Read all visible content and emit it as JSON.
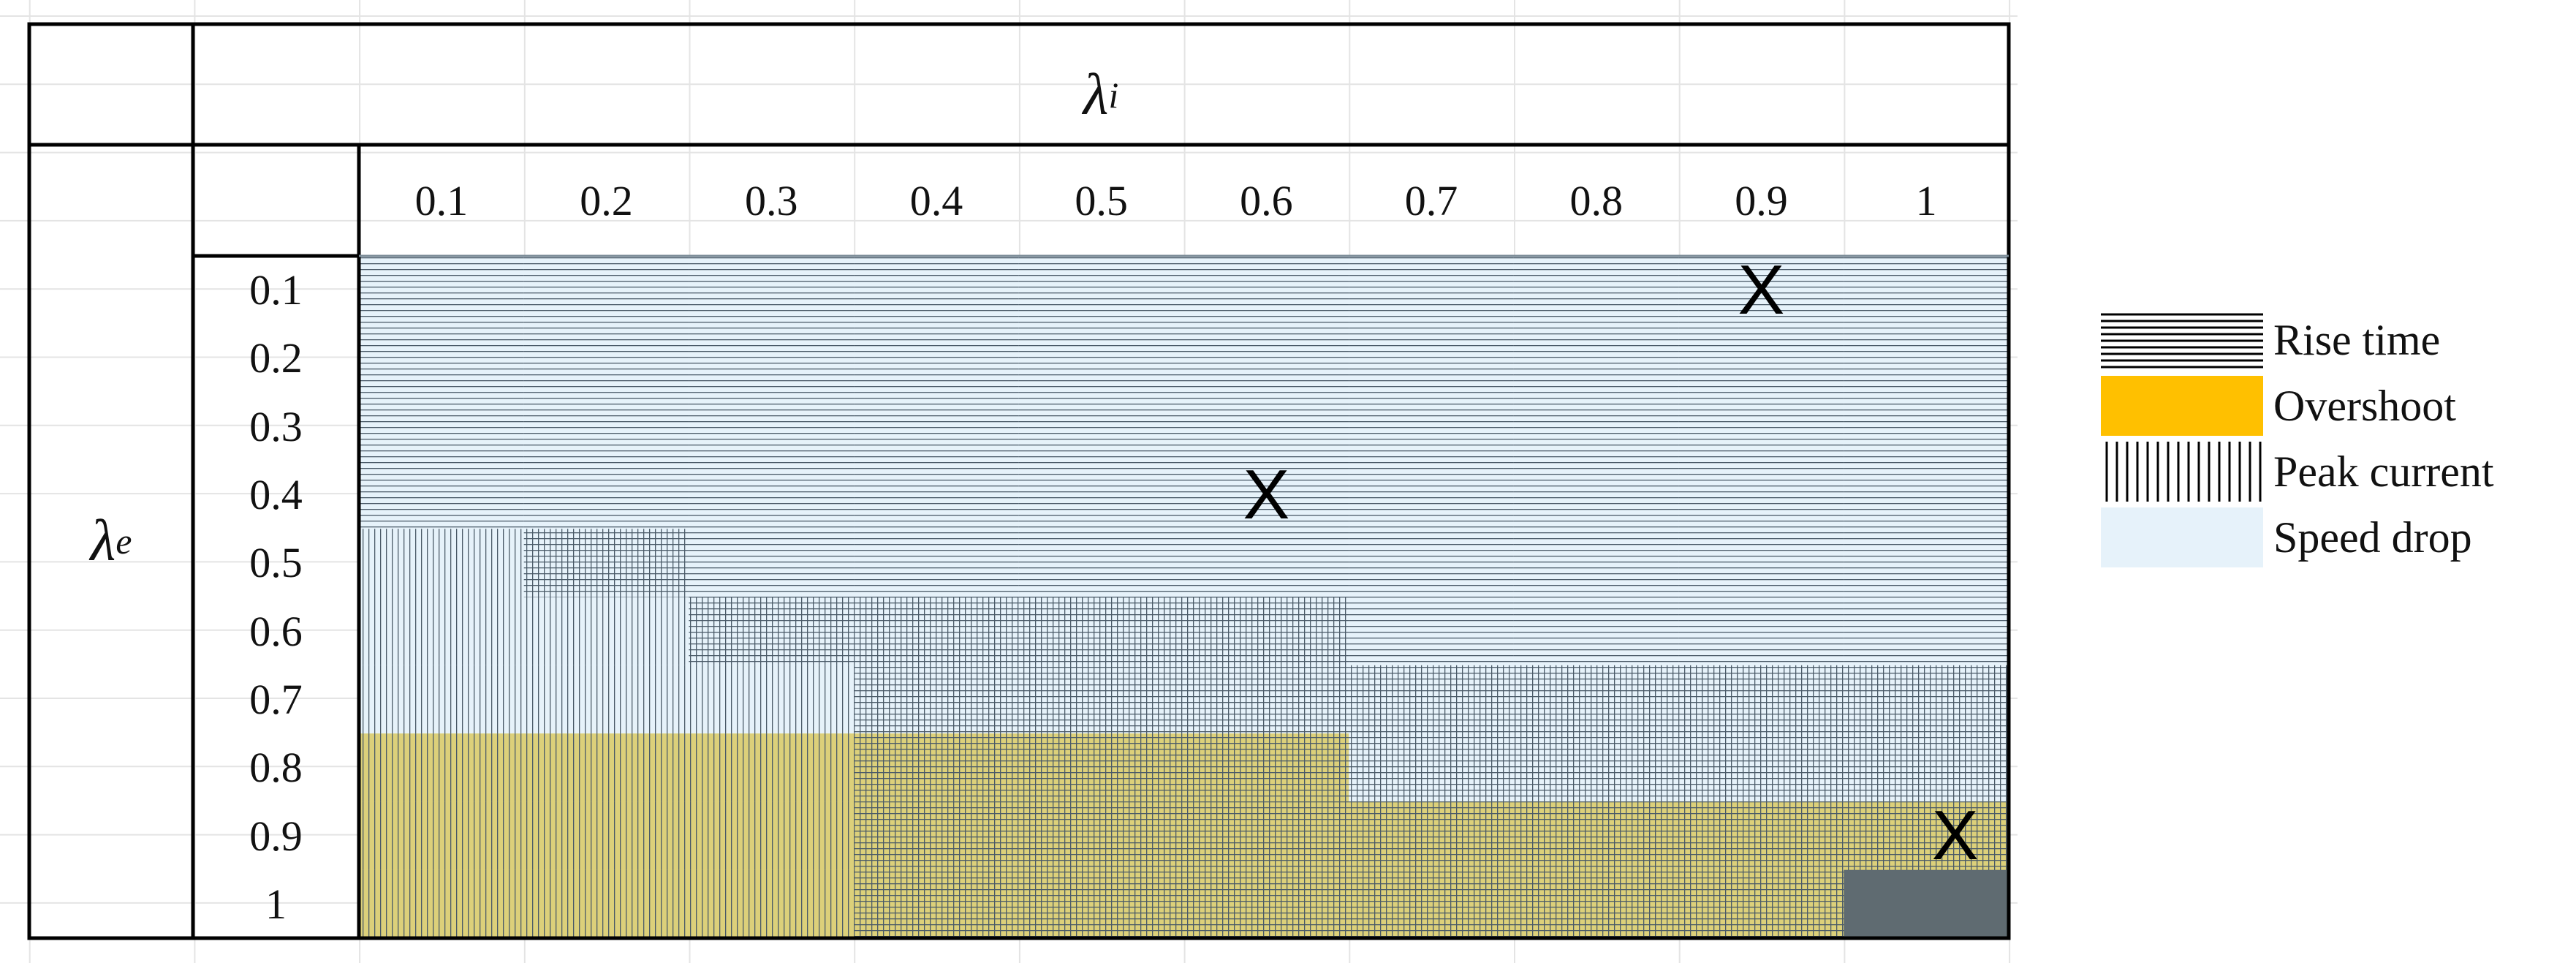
{
  "header": {
    "column_symbol": "λ",
    "column_subscript": "i",
    "row_symbol": "λ",
    "row_subscript": "e"
  },
  "columns": [
    "0.1",
    "0.2",
    "0.3",
    "0.4",
    "0.5",
    "0.6",
    "0.7",
    "0.8",
    "0.9",
    "1"
  ],
  "rows": [
    "0.1",
    "0.2",
    "0.3",
    "0.4",
    "0.5",
    "0.6",
    "0.7",
    "0.8",
    "0.9",
    "1"
  ],
  "grid": [
    [
      "R",
      "R",
      "R",
      "R",
      "R",
      "R",
      "R",
      "R",
      "R",
      "R"
    ],
    [
      "R",
      "R",
      "R",
      "R",
      "R",
      "R",
      "R",
      "R",
      "R",
      "R"
    ],
    [
      "R",
      "R",
      "R",
      "R",
      "R",
      "R",
      "R",
      "R",
      "R",
      "R"
    ],
    [
      "R",
      "R",
      "R",
      "R",
      "R",
      "R",
      "R",
      "R",
      "R",
      "R"
    ],
    [
      "P",
      "RP",
      "R",
      "R",
      "R",
      "R",
      "R",
      "R",
      "R",
      "R"
    ],
    [
      "P",
      "P",
      "RP",
      "RP",
      "RP",
      "RP",
      "R",
      "R",
      "R",
      "R"
    ],
    [
      "P",
      "P",
      "P",
      "RP",
      "RP",
      "RP",
      "RP",
      "RP",
      "RP",
      "RP"
    ],
    [
      "OP",
      "OP",
      "OP",
      "ORP",
      "ORP",
      "ORP",
      "RP",
      "RP",
      "RP",
      "RP"
    ],
    [
      "OP",
      "OP",
      "OP",
      "ORP",
      "ORP",
      "ORP",
      "ORP",
      "ORP",
      "ORP",
      "ORP"
    ],
    [
      "OP",
      "OP",
      "OP",
      "ORP",
      "ORP",
      "ORP",
      "ORP",
      "ORP",
      "ORP",
      "D"
    ]
  ],
  "x_marks": [
    {
      "row": "0.1",
      "col": "0.9",
      "label": "X"
    },
    {
      "row": "0.4",
      "col": "0.6",
      "label": "X"
    },
    {
      "row": "0.9",
      "col": "1",
      "label": "X"
    }
  ],
  "legend": [
    {
      "key": "R",
      "label": "Rise time"
    },
    {
      "key": "O",
      "label": "Overshoot"
    },
    {
      "key": "P",
      "label": "Peak current"
    },
    {
      "key": "S",
      "label": "Speed drop"
    }
  ],
  "colors": {
    "speed_drop": "#e6f2fa",
    "overshoot": "#ffc000",
    "overshoot_blend": "#dcd07a",
    "dark_cell": "#5f6b71",
    "hatch": "#4a5a68",
    "legend_hatch": "#000000"
  }
}
